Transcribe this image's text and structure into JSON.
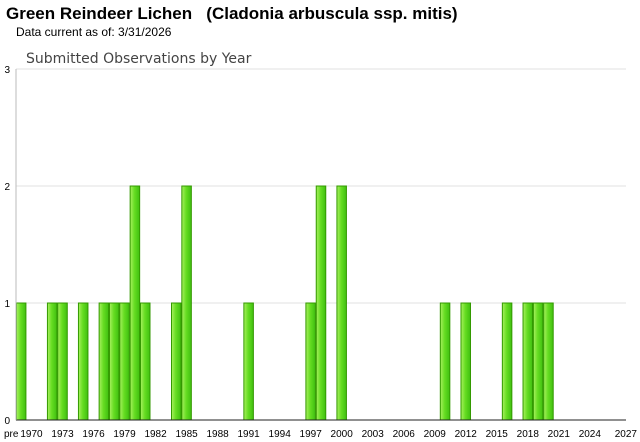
{
  "header": {
    "title": "Green Reindeer Lichen   (Cladonia arbuscula ssp. mitis)",
    "subtitle": "Data current as of: 3/31/2026"
  },
  "chart_data": {
    "type": "bar",
    "title": "Submitted Observations by Year",
    "xlabel": "",
    "ylabel": "",
    "ylim": [
      0,
      3
    ],
    "yticks": [
      0,
      1,
      2,
      3
    ],
    "grid": true,
    "bar_color": "#66dd22",
    "bar_edge_color": "#339900",
    "categories": [
      "pre",
      "1970",
      "1971",
      "1972",
      "1973",
      "1974",
      "1975",
      "1976",
      "1977",
      "1978",
      "1979",
      "1980",
      "1981",
      "1982",
      "1983",
      "1984",
      "1985",
      "1986",
      "1987",
      "1988",
      "1989",
      "1990",
      "1991",
      "1992",
      "1993",
      "1994",
      "1995",
      "1996",
      "1997",
      "1998",
      "1999",
      "2000",
      "2001",
      "2002",
      "2003",
      "2004",
      "2005",
      "2006",
      "2007",
      "2008",
      "2009",
      "2010",
      "2011",
      "2012",
      "2013",
      "2014",
      "2015",
      "2016",
      "2017",
      "2018",
      "2019",
      "2020",
      "2021",
      "2022",
      "2023",
      "2024",
      "2025",
      "2026",
      "2027"
    ],
    "values": [
      1,
      0,
      0,
      1,
      1,
      0,
      1,
      0,
      1,
      1,
      1,
      2,
      1,
      0,
      0,
      1,
      2,
      0,
      0,
      0,
      0,
      0,
      1,
      0,
      0,
      0,
      0,
      0,
      1,
      2,
      0,
      2,
      0,
      0,
      0,
      0,
      0,
      0,
      0,
      0,
      0,
      1,
      0,
      1,
      0,
      0,
      0,
      1,
      0,
      1,
      1,
      1,
      0,
      0,
      0,
      0,
      0,
      0,
      0
    ],
    "xtick_labels": [
      "pre",
      "1970",
      "1973",
      "1976",
      "1979",
      "1982",
      "1985",
      "1988",
      "1991",
      "1994",
      "1997",
      "2000",
      "2003",
      "2006",
      "2009",
      "2012",
      "2015",
      "2018",
      "2021",
      "2024",
      "2027"
    ]
  }
}
